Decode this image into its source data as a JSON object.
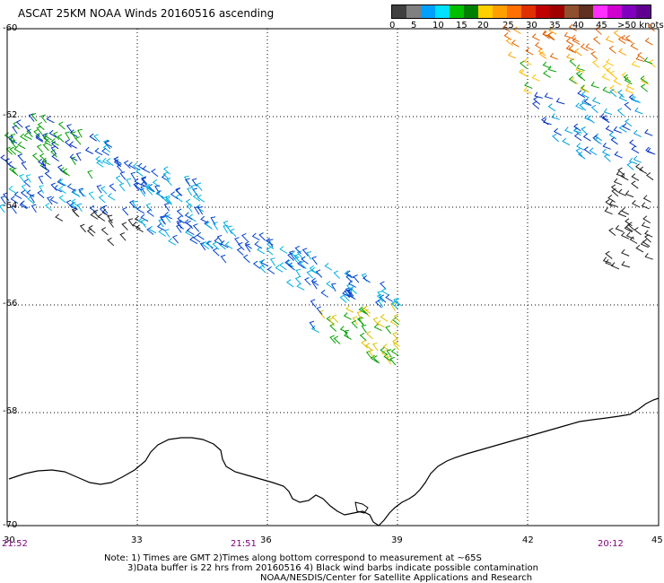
{
  "title": "ASCAT 25KM NOAA Winds 20160516 ascending",
  "legend": {
    "labels": [
      "0",
      "5",
      "10",
      "15",
      "20",
      "25",
      "30",
      "35",
      "40",
      "45",
      ">50 knots"
    ],
    "colors": [
      "#404040",
      "#808080",
      "#00a0ff",
      "#00e0ff",
      "#00c000",
      "#008000",
      "#ffd000",
      "#ffa000",
      "#ff7000",
      "#e03000",
      "#c00000",
      "#a00000",
      "#905030",
      "#603020",
      "#ff30ff",
      "#d000d0",
      "#8000c0",
      "#600090"
    ]
  },
  "axes": {
    "lat_labels": [
      "-60",
      "-62",
      "-64",
      "-66",
      "-68",
      "-70"
    ],
    "lon_labels": [
      "30",
      "33",
      "36",
      "39",
      "42",
      "45"
    ]
  },
  "times": [
    "21:52",
    "21:51",
    "20:12"
  ],
  "notes": {
    "line1": "Note: 1) Times are GMT 2)Times along bottom correspond to measurement at ~65S",
    "line2": "3)Data buffer is 22 hrs from 20160516 4) Black wind barbs indicate possible contamination",
    "line3": "NOAA/NESDIS/Center for Satellite Applications and Research"
  }
}
